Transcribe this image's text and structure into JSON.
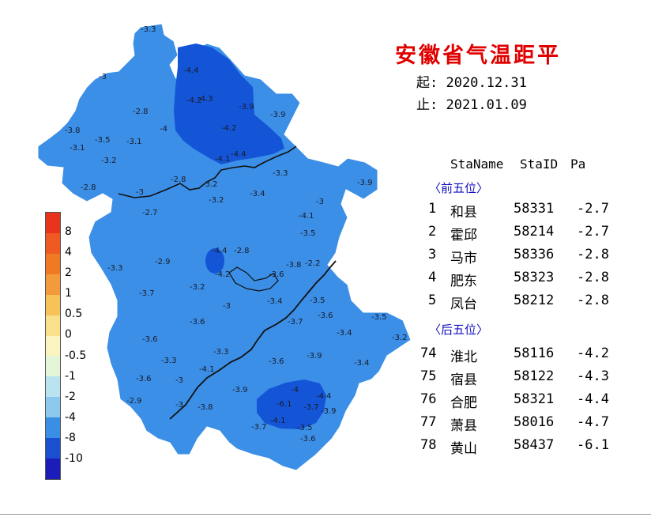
{
  "title": "安徽省气温距平",
  "start_label": "起: 2020.12.31",
  "end_label": "止: 2021.01.09",
  "table_header": {
    "col1": "StaName",
    "col2": "StaID",
    "col3": "Pa"
  },
  "top_group_label": "〈前五位〉",
  "bottom_group_label": "〈后五位〉",
  "top_five": [
    {
      "rank": "1",
      "name": "和县",
      "id": "58331",
      "pa": "-2.7"
    },
    {
      "rank": "2",
      "name": "霍邱",
      "id": "58214",
      "pa": "-2.7"
    },
    {
      "rank": "3",
      "name": "马市",
      "id": "58336",
      "pa": "-2.8"
    },
    {
      "rank": "4",
      "name": "肥东",
      "id": "58323",
      "pa": "-2.8"
    },
    {
      "rank": "5",
      "name": "凤台",
      "id": "58212",
      "pa": "-2.8"
    }
  ],
  "bottom_five": [
    {
      "rank": "74",
      "name": "淮北",
      "id": "58116",
      "pa": "-4.2"
    },
    {
      "rank": "75",
      "name": "宿县",
      "id": "58122",
      "pa": "-4.3"
    },
    {
      "rank": "76",
      "name": "合肥",
      "id": "58321",
      "pa": "-4.4"
    },
    {
      "rank": "77",
      "name": "萧县",
      "id": "58016",
      "pa": "-4.7"
    },
    {
      "rank": "78",
      "name": "黄山",
      "id": "58437",
      "pa": "-6.1"
    }
  ],
  "legend": {
    "labels": [
      "8",
      "4",
      "2",
      "1",
      "0.5",
      "0",
      "-0.5",
      "-1",
      "-2",
      "-4",
      "-8",
      "-10"
    ],
    "colors": [
      "#e8341c",
      "#ef5a22",
      "#f07a24",
      "#f39a3c",
      "#f6c25a",
      "#f9e08a",
      "#fbf4c0",
      "#e4f5d8",
      "#b9e4ef",
      "#8cc8ee",
      "#3a8ee4",
      "#1a4fd0",
      "#1c1cb8"
    ]
  },
  "colors": {
    "province_fill": "#3b8fe6",
    "cold_fill": "#1455d8",
    "river": "#111111",
    "title": "#e00000",
    "group_label": "#1010c0"
  },
  "station_values": [
    "-3.3",
    "-4.4",
    "-4.2",
    "-4.3",
    "-3",
    "-3.9",
    "-3.9",
    "-2.8",
    "-3.8",
    "-3.1",
    "-3.5",
    "-3.1",
    "-4",
    "-4.2",
    "-3.2",
    "-4.1",
    "-4.4",
    "-3.3",
    "-3.9",
    "-2.8",
    "-3",
    "-2.8",
    "-3.2",
    "-3.4",
    "-3",
    "-2.7",
    "-3.2",
    "-4.1",
    "-3.5",
    "-3.3",
    "-2.9",
    "-4.4",
    "-2.8",
    "-4.2",
    "-3.6",
    "-3.8",
    "-2.2",
    "-3.7",
    "-3.2",
    "-3",
    "-3.4",
    "-3.5",
    "-3.6",
    "-3.7",
    "-3.5",
    "-3.4",
    "-3.6",
    "-3.6",
    "-3.3",
    "-3.6",
    "-3.9",
    "-3.2",
    "-4.1",
    "-3.4",
    "-3.3",
    "-3",
    "-3.6",
    "-2.9",
    "-3.8",
    "-3.9",
    "-4",
    "-4.4",
    "-6.1",
    "-3.9",
    "-3",
    "-3.7",
    "-4.1",
    "-3.5",
    "-3.7",
    "-3.6"
  ]
}
